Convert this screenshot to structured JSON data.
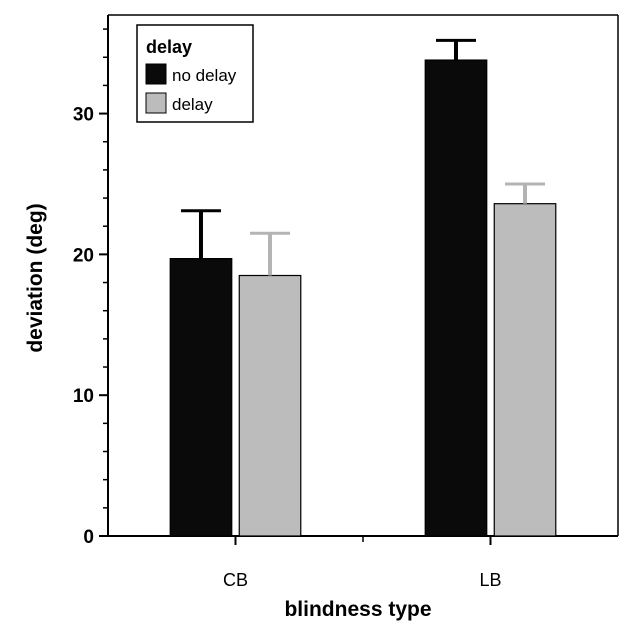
{
  "chart_data": {
    "type": "bar",
    "title": "",
    "xlabel": "blindness type",
    "ylabel": "deviation (deg)",
    "categories": [
      "CB",
      "LB"
    ],
    "ylim": [
      0,
      37
    ],
    "yticks": [
      0,
      10,
      20,
      30
    ],
    "grid": false,
    "legend": {
      "title": "delay",
      "placement": "top-left"
    },
    "series": [
      {
        "name": "no delay",
        "color": "#0a0a0a",
        "values": [
          19.7,
          33.8
        ],
        "errors": [
          3.4,
          1.4
        ]
      },
      {
        "name": "delay",
        "color": "#bcbcbc",
        "values": [
          18.5,
          23.6
        ],
        "errors": [
          3.0,
          1.4
        ]
      }
    ]
  }
}
